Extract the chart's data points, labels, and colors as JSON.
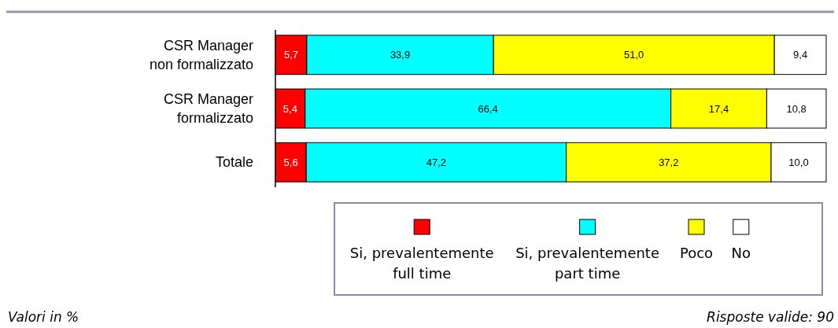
{
  "chart_data": {
    "type": "bar",
    "orientation": "horizontal",
    "stacked": true,
    "legend": "bottom",
    "categories": [
      "CSR Manager\nnon formalizzato",
      "CSR Manager\nformalizzato",
      "Totale"
    ],
    "series": [
      {
        "name": "Si, prevalentemente\nfull time",
        "color": "#ff0000",
        "values": [
          5.7,
          5.4,
          5.6
        ],
        "value_labels": [
          "5,7",
          "5,4",
          "5,6"
        ]
      },
      {
        "name": "Si, prevalentemente\npart time",
        "color": "#00ffff",
        "values": [
          33.9,
          66.4,
          47.2
        ],
        "value_labels": [
          "33,9",
          "66,4",
          "47,2"
        ]
      },
      {
        "name": "Poco",
        "color": "#ffff00",
        "values": [
          51.0,
          17.4,
          37.2
        ],
        "value_labels": [
          "51,0",
          "17,4",
          "37,2"
        ]
      },
      {
        "name": "No",
        "color": "#ffffff",
        "values": [
          9.4,
          10.8,
          10.0
        ],
        "value_labels": [
          "9,4",
          "10,8",
          "10,0"
        ]
      }
    ],
    "annotations": [
      "Valori in %",
      "Risposte valide: 90"
    ]
  }
}
